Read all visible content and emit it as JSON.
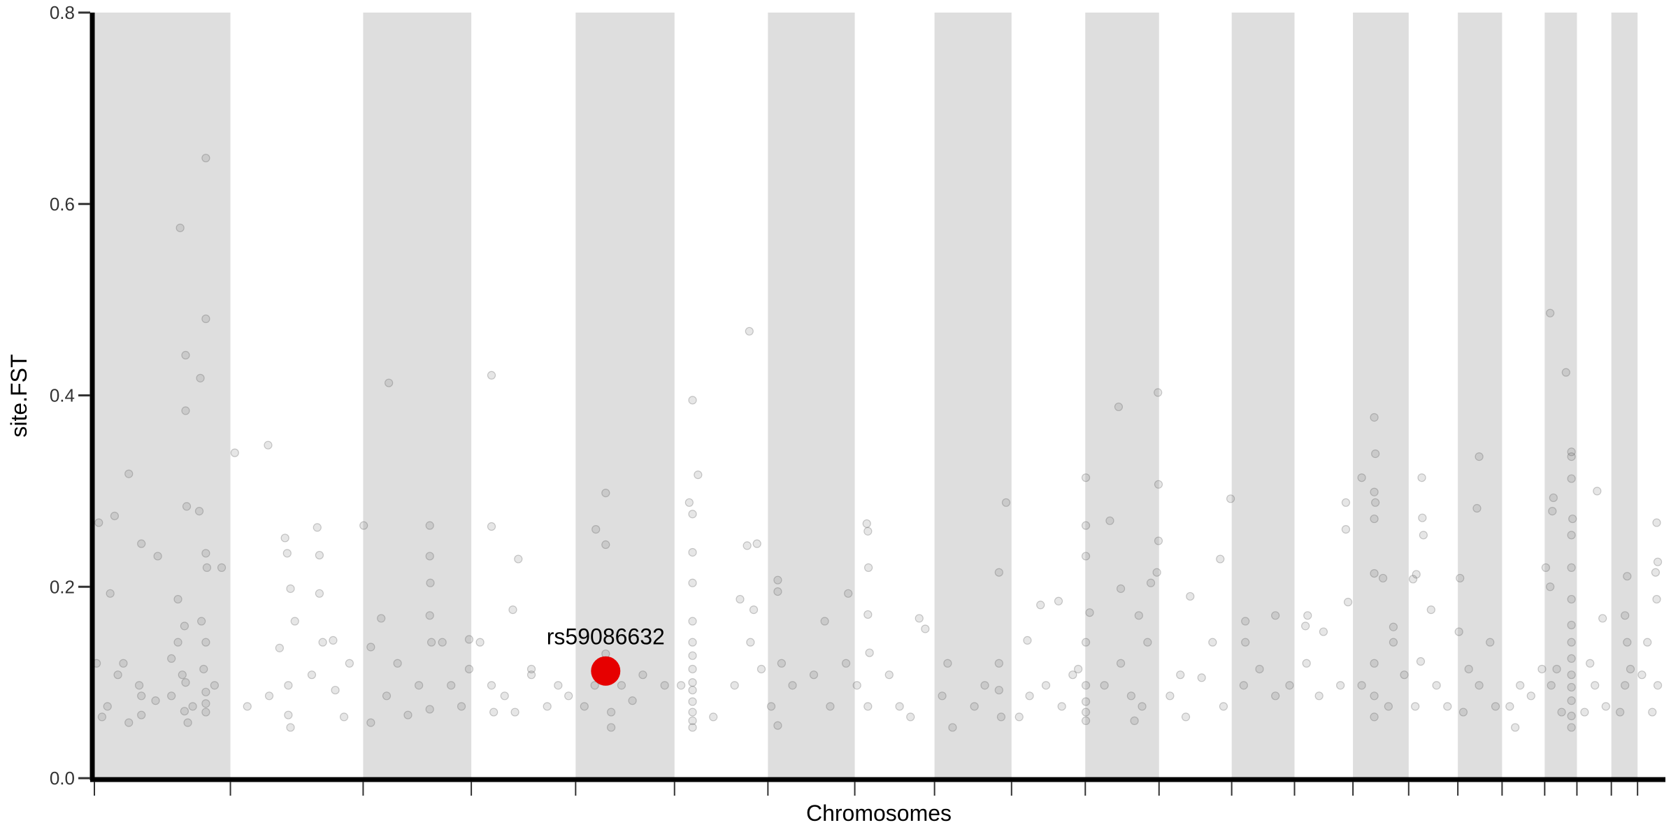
{
  "chart_data": {
    "type": "scatter",
    "subtype": "manhattan",
    "title": "",
    "xlabel": "Chromosomes",
    "ylabel": "site.FST",
    "ylim": [
      0,
      0.8
    ],
    "yticks": [
      "0.0",
      "0.2",
      "0.4",
      "0.6",
      "0.8"
    ],
    "grid": false,
    "alternating_band_color": "#dedede",
    "point_color": "#555555",
    "point_opacity": 0.15,
    "highlight_color": "#e60000",
    "chromosome_sizes_mb": [
      249,
      243,
      198,
      191,
      181,
      171,
      159,
      146,
      141,
      135,
      135,
      133,
      115,
      107,
      102,
      90,
      81,
      78,
      59,
      63,
      48,
      51
    ],
    "highlight": {
      "label": "rs59086632",
      "chr": 5,
      "pos": 55,
      "fst": 0.112
    },
    "points_columns": [
      "chr",
      "pos_mb",
      "fst"
    ],
    "points": [
      [
        1,
        8,
        0.267
      ],
      [
        1,
        29,
        0.193
      ],
      [
        1,
        37,
        0.274
      ],
      [
        1,
        63,
        0.318
      ],
      [
        1,
        86,
        0.245
      ],
      [
        1,
        116,
        0.232
      ],
      [
        1,
        157,
        0.575
      ],
      [
        1,
        167,
        0.442
      ],
      [
        1,
        167,
        0.384
      ],
      [
        1,
        169,
        0.284
      ],
      [
        1,
        194,
        0.418
      ],
      [
        1,
        192,
        0.279
      ],
      [
        1,
        204,
        0.648
      ],
      [
        1,
        204,
        0.48
      ],
      [
        1,
        204,
        0.235
      ],
      [
        1,
        206,
        0.22
      ],
      [
        1,
        233,
        0.22
      ],
      [
        1,
        153,
        0.187
      ],
      [
        1,
        165,
        0.159
      ],
      [
        1,
        153,
        0.142
      ],
      [
        1,
        141,
        0.086
      ],
      [
        1,
        161,
        0.108
      ],
      [
        1,
        196,
        0.164
      ],
      [
        1,
        204,
        0.142
      ],
      [
        1,
        200,
        0.114
      ],
      [
        1,
        204,
        0.069
      ],
      [
        1,
        180,
        0.075
      ],
      [
        1,
        82,
        0.097
      ],
      [
        1,
        86,
        0.086
      ],
      [
        1,
        86,
        0.066
      ],
      [
        1,
        43,
        0.108
      ],
      [
        1,
        24,
        0.075
      ],
      [
        1,
        14,
        0.064
      ],
      [
        1,
        53,
        0.12
      ],
      [
        1,
        112,
        0.081
      ],
      [
        1,
        63,
        0.058
      ],
      [
        1,
        220,
        0.097
      ],
      [
        1,
        171,
        0.058
      ],
      [
        1,
        141,
        0.125
      ],
      [
        1,
        4,
        0.12
      ],
      [
        1,
        167,
        0.1
      ],
      [
        1,
        204,
        0.09
      ],
      [
        1,
        204,
        0.078
      ],
      [
        1,
        165,
        0.07
      ],
      [
        2,
        8,
        0.34
      ],
      [
        2,
        69,
        0.348
      ],
      [
        2,
        100,
        0.251
      ],
      [
        2,
        104,
        0.235
      ],
      [
        2,
        110,
        0.198
      ],
      [
        2,
        118,
        0.164
      ],
      [
        2,
        159,
        0.262
      ],
      [
        2,
        163,
        0.233
      ],
      [
        2,
        163,
        0.193
      ],
      [
        2,
        31,
        0.075
      ],
      [
        2,
        71,
        0.086
      ],
      [
        2,
        106,
        0.097
      ],
      [
        2,
        106,
        0.066
      ],
      [
        2,
        110,
        0.053
      ],
      [
        2,
        149,
        0.108
      ],
      [
        2,
        169,
        0.142
      ],
      [
        2,
        188,
        0.144
      ],
      [
        2,
        192,
        0.092
      ],
      [
        2,
        208,
        0.064
      ],
      [
        2,
        218,
        0.12
      ],
      [
        2,
        90,
        0.136
      ],
      [
        3,
        1,
        0.264
      ],
      [
        3,
        33,
        0.167
      ],
      [
        3,
        47,
        0.413
      ],
      [
        3,
        14,
        0.137
      ],
      [
        3,
        43,
        0.086
      ],
      [
        3,
        63,
        0.12
      ],
      [
        3,
        122,
        0.264
      ],
      [
        3,
        122,
        0.232
      ],
      [
        3,
        123,
        0.204
      ],
      [
        3,
        122,
        0.17
      ],
      [
        3,
        125,
        0.142
      ],
      [
        3,
        122,
        0.072
      ],
      [
        3,
        102,
        0.097
      ],
      [
        3,
        145,
        0.142
      ],
      [
        3,
        194,
        0.145
      ],
      [
        3,
        194,
        0.114
      ],
      [
        3,
        180,
        0.075
      ],
      [
        3,
        82,
        0.066
      ],
      [
        3,
        161,
        0.097
      ],
      [
        3,
        14,
        0.058
      ],
      [
        4,
        37,
        0.421
      ],
      [
        4,
        37,
        0.263
      ],
      [
        4,
        86,
        0.229
      ],
      [
        4,
        76,
        0.176
      ],
      [
        4,
        110,
        0.108
      ],
      [
        4,
        37,
        0.097
      ],
      [
        4,
        41,
        0.069
      ],
      [
        4,
        80,
        0.069
      ],
      [
        4,
        159,
        0.097
      ],
      [
        4,
        139,
        0.075
      ],
      [
        4,
        178,
        0.086
      ],
      [
        4,
        110,
        0.114
      ],
      [
        4,
        16,
        0.142
      ],
      [
        4,
        61,
        0.086
      ],
      [
        5,
        55,
        0.298
      ],
      [
        5,
        37,
        0.26
      ],
      [
        5,
        55,
        0.244
      ],
      [
        5,
        16,
        0.075
      ],
      [
        5,
        65,
        0.069
      ],
      [
        5,
        35,
        0.097
      ],
      [
        5,
        84,
        0.097
      ],
      [
        5,
        123,
        0.108
      ],
      [
        5,
        163,
        0.097
      ],
      [
        5,
        104,
        0.081
      ],
      [
        5,
        65,
        0.053
      ],
      [
        5,
        55,
        0.13
      ],
      [
        5,
        45,
        0.12
      ],
      [
        6,
        33,
        0.395
      ],
      [
        6,
        43,
        0.317
      ],
      [
        6,
        27,
        0.288
      ],
      [
        6,
        33,
        0.276
      ],
      [
        6,
        33,
        0.236
      ],
      [
        6,
        33,
        0.204
      ],
      [
        6,
        33,
        0.164
      ],
      [
        6,
        33,
        0.142
      ],
      [
        6,
        33,
        0.114
      ],
      [
        6,
        33,
        0.092
      ],
      [
        6,
        33,
        0.069
      ],
      [
        6,
        33,
        0.053
      ],
      [
        6,
        33,
        0.06
      ],
      [
        6,
        33,
        0.08
      ],
      [
        6,
        33,
        0.1
      ],
      [
        6,
        33,
        0.128
      ],
      [
        6,
        12,
        0.097
      ],
      [
        6,
        71,
        0.064
      ],
      [
        6,
        120,
        0.187
      ],
      [
        6,
        137,
        0.467
      ],
      [
        6,
        133,
        0.243
      ],
      [
        6,
        151,
        0.245
      ],
      [
        6,
        145,
        0.176
      ],
      [
        6,
        139,
        0.142
      ],
      [
        6,
        159,
        0.114
      ],
      [
        6,
        110,
        0.097
      ],
      [
        7,
        18,
        0.207
      ],
      [
        7,
        18,
        0.195
      ],
      [
        7,
        25,
        0.12
      ],
      [
        7,
        6,
        0.075
      ],
      [
        7,
        45,
        0.097
      ],
      [
        7,
        84,
        0.108
      ],
      [
        7,
        104,
        0.164
      ],
      [
        7,
        114,
        0.075
      ],
      [
        7,
        143,
        0.12
      ],
      [
        7,
        147,
        0.193
      ],
      [
        7,
        18,
        0.055
      ],
      [
        8,
        22,
        0.266
      ],
      [
        8,
        24,
        0.258
      ],
      [
        8,
        25,
        0.22
      ],
      [
        8,
        24,
        0.171
      ],
      [
        8,
        4,
        0.097
      ],
      [
        8,
        24,
        0.075
      ],
      [
        8,
        63,
        0.108
      ],
      [
        8,
        102,
        0.064
      ],
      [
        8,
        118,
        0.167
      ],
      [
        8,
        129,
        0.156
      ],
      [
        8,
        82,
        0.075
      ],
      [
        8,
        27,
        0.131
      ],
      [
        9,
        118,
        0.215
      ],
      [
        9,
        131,
        0.288
      ],
      [
        9,
        24,
        0.12
      ],
      [
        9,
        14,
        0.086
      ],
      [
        9,
        33,
        0.053
      ],
      [
        9,
        118,
        0.12
      ],
      [
        9,
        118,
        0.092
      ],
      [
        9,
        122,
        0.064
      ],
      [
        9,
        73,
        0.075
      ],
      [
        9,
        92,
        0.097
      ],
      [
        10,
        29,
        0.144
      ],
      [
        10,
        53,
        0.181
      ],
      [
        10,
        86,
        0.185
      ],
      [
        10,
        112,
        0.108
      ],
      [
        10,
        33,
        0.086
      ],
      [
        10,
        63,
        0.097
      ],
      [
        10,
        92,
        0.075
      ],
      [
        10,
        122,
        0.114
      ],
      [
        10,
        14,
        0.064
      ],
      [
        11,
        1,
        0.314
      ],
      [
        11,
        1,
        0.264
      ],
      [
        11,
        1,
        0.232
      ],
      [
        11,
        8,
        0.173
      ],
      [
        11,
        45,
        0.269
      ],
      [
        11,
        61,
        0.388
      ],
      [
        11,
        65,
        0.198
      ],
      [
        11,
        98,
        0.17
      ],
      [
        11,
        120,
        0.204
      ],
      [
        11,
        133,
        0.403
      ],
      [
        11,
        134,
        0.307
      ],
      [
        11,
        134,
        0.248
      ],
      [
        11,
        131,
        0.215
      ],
      [
        11,
        1,
        0.142
      ],
      [
        11,
        1,
        0.097
      ],
      [
        11,
        1,
        0.069
      ],
      [
        11,
        1,
        0.08
      ],
      [
        11,
        1,
        0.06
      ],
      [
        11,
        35,
        0.097
      ],
      [
        11,
        65,
        0.12
      ],
      [
        11,
        84,
        0.086
      ],
      [
        11,
        104,
        0.075
      ],
      [
        11,
        114,
        0.142
      ],
      [
        11,
        90,
        0.06
      ],
      [
        12,
        57,
        0.19
      ],
      [
        12,
        78,
        0.105
      ],
      [
        12,
        112,
        0.229
      ],
      [
        12,
        131,
        0.292
      ],
      [
        12,
        39,
        0.108
      ],
      [
        12,
        20,
        0.086
      ],
      [
        12,
        98,
        0.142
      ],
      [
        12,
        118,
        0.075
      ],
      [
        12,
        49,
        0.064
      ],
      [
        13,
        25,
        0.164
      ],
      [
        13,
        25,
        0.142
      ],
      [
        13,
        22,
        0.097
      ],
      [
        13,
        51,
        0.114
      ],
      [
        13,
        80,
        0.086
      ],
      [
        13,
        106,
        0.097
      ],
      [
        13,
        80,
        0.17
      ],
      [
        14,
        24,
        0.17
      ],
      [
        14,
        20,
        0.159
      ],
      [
        14,
        53,
        0.153
      ],
      [
        14,
        22,
        0.12
      ],
      [
        14,
        45,
        0.086
      ],
      [
        14,
        84,
        0.097
      ],
      [
        14,
        94,
        0.288
      ],
      [
        14,
        94,
        0.26
      ],
      [
        14,
        98,
        0.184
      ],
      [
        15,
        39,
        0.377
      ],
      [
        15,
        41,
        0.339
      ],
      [
        15,
        39,
        0.299
      ],
      [
        15,
        41,
        0.288
      ],
      [
        15,
        39,
        0.271
      ],
      [
        15,
        39,
        0.214
      ],
      [
        15,
        16,
        0.314
      ],
      [
        15,
        55,
        0.209
      ],
      [
        15,
        74,
        0.158
      ],
      [
        15,
        74,
        0.142
      ],
      [
        15,
        39,
        0.12
      ],
      [
        15,
        39,
        0.086
      ],
      [
        15,
        39,
        0.064
      ],
      [
        15,
        16,
        0.097
      ],
      [
        15,
        65,
        0.075
      ],
      [
        15,
        94,
        0.108
      ],
      [
        16,
        24,
        0.314
      ],
      [
        16,
        25,
        0.272
      ],
      [
        16,
        27,
        0.254
      ],
      [
        16,
        14,
        0.213
      ],
      [
        16,
        8,
        0.208
      ],
      [
        16,
        22,
        0.122
      ],
      [
        16,
        51,
        0.097
      ],
      [
        16,
        71,
        0.075
      ],
      [
        16,
        12,
        0.075
      ],
      [
        16,
        41,
        0.176
      ],
      [
        17,
        2,
        0.153
      ],
      [
        17,
        39,
        0.336
      ],
      [
        17,
        35,
        0.282
      ],
      [
        17,
        4,
        0.209
      ],
      [
        17,
        20,
        0.114
      ],
      [
        17,
        39,
        0.097
      ],
      [
        17,
        69,
        0.075
      ],
      [
        17,
        59,
        0.142
      ],
      [
        17,
        10,
        0.069
      ],
      [
        18,
        14,
        0.075
      ],
      [
        18,
        33,
        0.097
      ],
      [
        18,
        53,
        0.086
      ],
      [
        18,
        73,
        0.114
      ],
      [
        18,
        24,
        0.053
      ],
      [
        19,
        10,
        0.486
      ],
      [
        19,
        39,
        0.424
      ],
      [
        19,
        49,
        0.341
      ],
      [
        19,
        49,
        0.336
      ],
      [
        19,
        49,
        0.313
      ],
      [
        19,
        51,
        0.271
      ],
      [
        19,
        49,
        0.254
      ],
      [
        19,
        49,
        0.22
      ],
      [
        19,
        16,
        0.293
      ],
      [
        19,
        14,
        0.279
      ],
      [
        19,
        10,
        0.2
      ],
      [
        19,
        2,
        0.22
      ],
      [
        19,
        49,
        0.187
      ],
      [
        19,
        49,
        0.142
      ],
      [
        19,
        49,
        0.108
      ],
      [
        19,
        49,
        0.081
      ],
      [
        19,
        49,
        0.053
      ],
      [
        19,
        49,
        0.065
      ],
      [
        19,
        49,
        0.095
      ],
      [
        19,
        49,
        0.125
      ],
      [
        19,
        49,
        0.16
      ],
      [
        19,
        12,
        0.097
      ],
      [
        19,
        22,
        0.114
      ],
      [
        19,
        31,
        0.069
      ],
      [
        20,
        37,
        0.3
      ],
      [
        20,
        47,
        0.167
      ],
      [
        20,
        24,
        0.12
      ],
      [
        20,
        33,
        0.097
      ],
      [
        20,
        53,
        0.075
      ],
      [
        20,
        14,
        0.069
      ],
      [
        21,
        29,
        0.211
      ],
      [
        21,
        25,
        0.17
      ],
      [
        21,
        29,
        0.142
      ],
      [
        21,
        25,
        0.097
      ],
      [
        21,
        16,
        0.069
      ],
      [
        21,
        35,
        0.114
      ],
      [
        22,
        35,
        0.267
      ],
      [
        22,
        37,
        0.226
      ],
      [
        22,
        33,
        0.215
      ],
      [
        22,
        35,
        0.187
      ],
      [
        22,
        18,
        0.142
      ],
      [
        22,
        37,
        0.097
      ],
      [
        22,
        27,
        0.069
      ],
      [
        22,
        8,
        0.108
      ]
    ]
  }
}
